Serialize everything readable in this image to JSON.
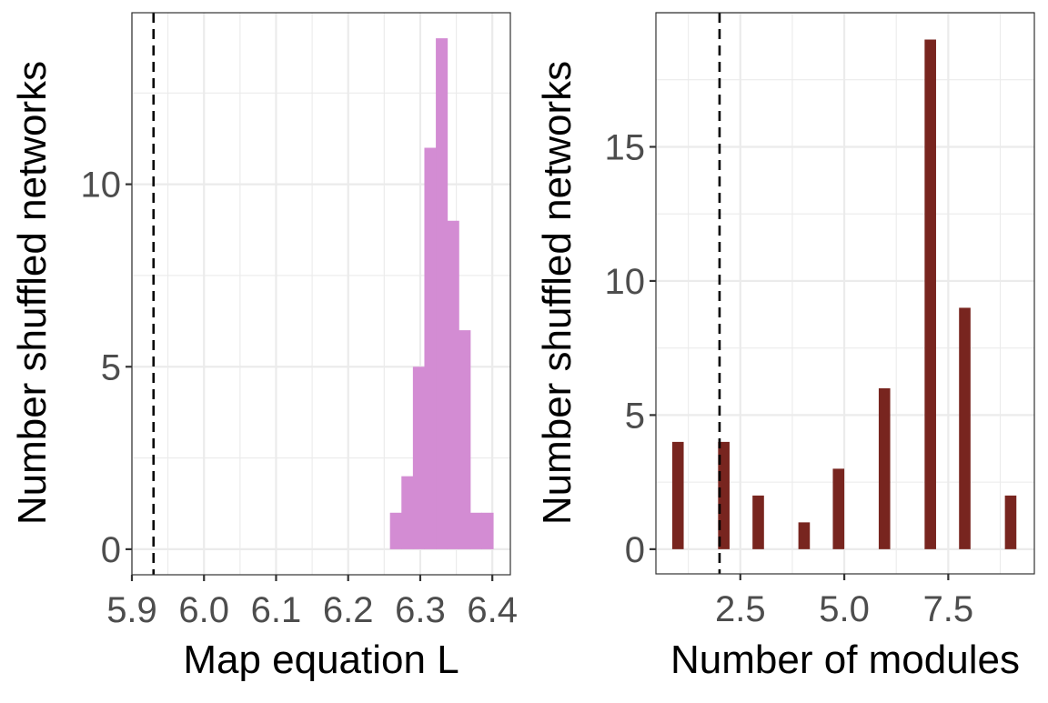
{
  "chart_data": [
    {
      "type": "bar",
      "subtype": "histogram",
      "xlabel": "Map equation L",
      "ylabel": "Number shuffled networks",
      "xlim": [
        5.9,
        6.425
      ],
      "ylim": [
        -0.7,
        14.7
      ],
      "xticks": [
        5.9,
        6.0,
        6.1,
        6.2,
        6.3,
        6.4
      ],
      "xtick_labels": [
        "5.9",
        "6.0",
        "6.1",
        "6.2",
        "6.3",
        "6.4"
      ],
      "yticks": [
        0,
        5,
        10
      ],
      "ytick_labels": [
        "0",
        "5",
        "10"
      ],
      "bin_start": 6.258,
      "bin_width": 0.0159,
      "counts": [
        1,
        2,
        5,
        11,
        14,
        9,
        6,
        1,
        1
      ],
      "reference_line": 5.93,
      "color": "#D38CD3",
      "grid": true
    },
    {
      "type": "bar",
      "subtype": "histogram",
      "xlabel": "Number of modules",
      "ylabel": "Number shuffled networks",
      "xlim": [
        0.47,
        9.57
      ],
      "ylim": [
        -0.92,
        20.0
      ],
      "xticks": [
        2.5,
        5.0,
        7.5
      ],
      "xtick_labels": [
        "2.5",
        "5.0",
        "7.5"
      ],
      "yticks": [
        0,
        5,
        10,
        15
      ],
      "ytick_labels": [
        "0",
        "5",
        "10",
        "15"
      ],
      "bin_width": 0.276,
      "x": [
        1.0,
        2.103,
        2.931,
        4.034,
        4.862,
        5.966,
        7.069,
        7.897,
        9.0
      ],
      "counts": [
        4,
        4,
        2,
        1,
        3,
        6,
        19,
        9,
        2
      ],
      "reference_line": 2.0,
      "color": "#78251F",
      "grid": true
    }
  ]
}
